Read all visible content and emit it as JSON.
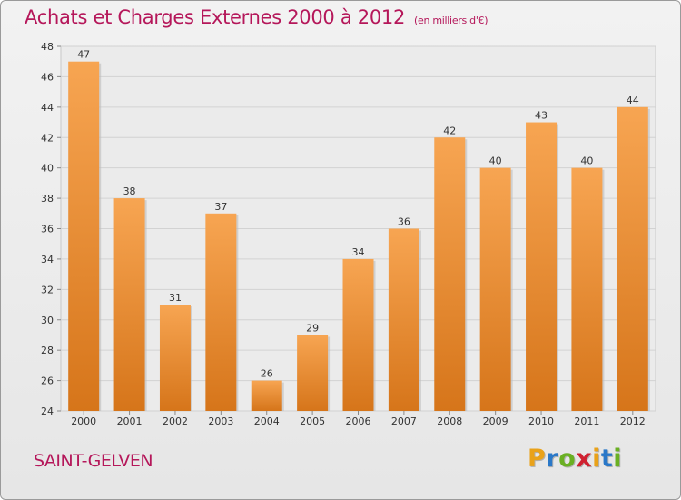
{
  "header": {
    "title": "Achats et Charges Externes 2000 à 2012",
    "subtitle": "(en milliers d'€)"
  },
  "footer": {
    "city": "SAINT-GELVEN",
    "logo_letters": [
      "P",
      "r",
      "o",
      "x",
      "i",
      "t",
      "i"
    ],
    "logo_colors": [
      "#e9a21a",
      "#2a78c8",
      "#6ab023",
      "#d02030",
      "#e9a21a",
      "#2a78c8",
      "#6ab023"
    ]
  },
  "colors": {
    "bar_top": "#f7a552",
    "bar_bottom": "#d6751a",
    "accent": "#b5175a"
  },
  "chart_data": {
    "type": "bar",
    "categories": [
      "2000",
      "2001",
      "2002",
      "2003",
      "2004",
      "2005",
      "2006",
      "2007",
      "2008",
      "2009",
      "2010",
      "2011",
      "2012"
    ],
    "values": [
      47,
      38,
      31,
      37,
      26,
      29,
      34,
      36,
      42,
      40,
      43,
      40,
      44
    ],
    "ylim": [
      24,
      48
    ],
    "yticks": [
      24,
      26,
      28,
      30,
      32,
      34,
      36,
      38,
      40,
      42,
      44,
      46,
      48
    ],
    "grid": true
  }
}
